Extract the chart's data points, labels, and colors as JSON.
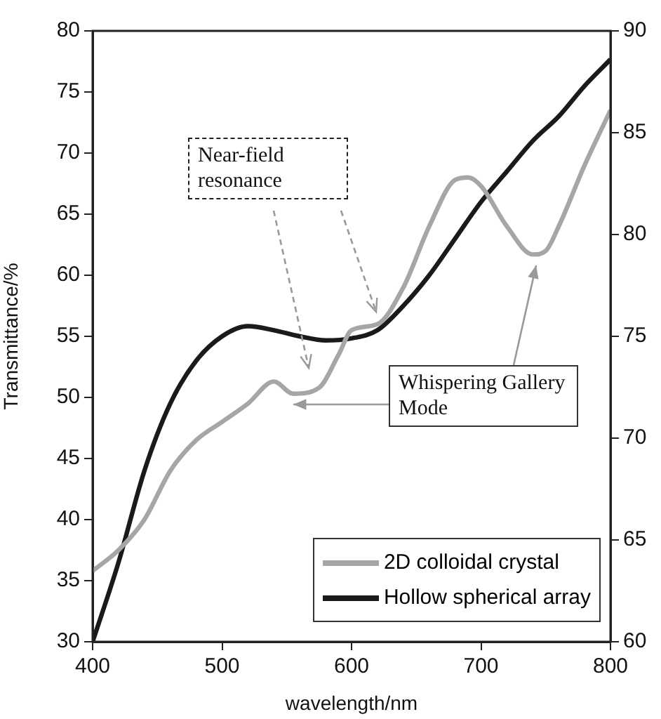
{
  "chart_data": {
    "type": "line",
    "xlabel": "wavelength/nm",
    "ylabel": "Transmittance/%",
    "xlim": [
      400,
      800
    ],
    "xticks": [
      400,
      500,
      600,
      700,
      800
    ],
    "ylim": [
      30,
      80
    ],
    "yticks": [
      30,
      35,
      40,
      45,
      50,
      55,
      60,
      65,
      70,
      75,
      80
    ],
    "y2lim": [
      60,
      90
    ],
    "y2ticks": [
      60,
      65,
      70,
      75,
      80,
      85,
      90
    ],
    "legend": "bottom right",
    "grid": false,
    "marker": "none",
    "line_style": "solid",
    "annotations": [
      "Near-field resonance",
      "Whispering Gallery Mode"
    ],
    "series": [
      {
        "name": "2D colloidal crystal",
        "color": "#a6a6a6",
        "x": [
          400,
          420,
          440,
          460,
          480,
          500,
          520,
          540,
          555,
          575,
          590,
          600,
          620,
          640,
          660,
          680,
          690,
          700,
          720,
          740,
          750,
          760,
          780,
          800
        ],
        "values": [
          35.8,
          37.5,
          40,
          44,
          46.5,
          48,
          49.5,
          51.3,
          50.3,
          50.8,
          53.5,
          55.5,
          56,
          59,
          64,
          67.8,
          68,
          67.3,
          64,
          61.7,
          62,
          64,
          69,
          73.5
        ]
      },
      {
        "name": "Hollow spherical array",
        "color": "#1a1a1a",
        "axis": "y2",
        "x": [
          400,
          420,
          440,
          460,
          480,
          500,
          520,
          540,
          560,
          580,
          600,
          620,
          640,
          660,
          680,
          700,
          720,
          740,
          760,
          780,
          800
        ],
        "values": [
          60,
          63.9,
          68.4,
          71.7,
          73.8,
          75,
          75.5,
          75.3,
          75,
          74.8,
          74.9,
          75.3,
          76.5,
          78,
          79.8,
          81.6,
          83.1,
          84.6,
          85.8,
          87.3,
          88.6
        ]
      }
    ]
  }
}
